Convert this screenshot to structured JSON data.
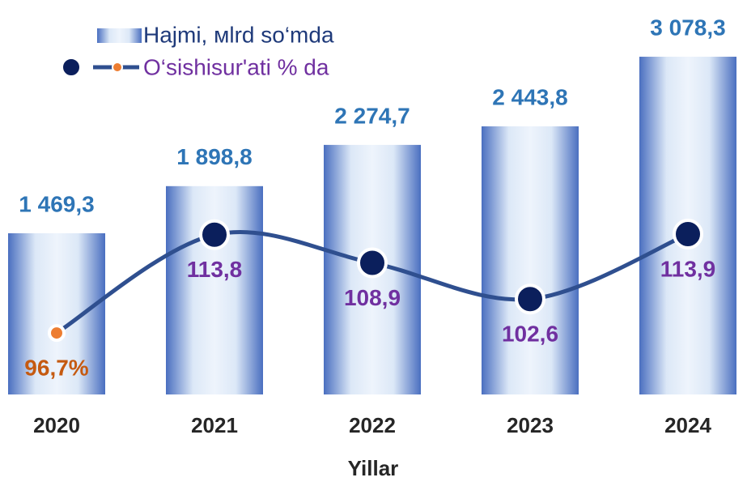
{
  "chart_data": {
    "type": "bar_line",
    "categories": [
      "2020",
      "2021",
      "2022",
      "2023",
      "2024"
    ],
    "x_label": "Yillar",
    "ylim": [
      0,
      3300
    ],
    "y2lim": [
      86,
      149
    ],
    "series": [
      {
        "name": "Hajmi, мlrd so‘mda",
        "type": "bar",
        "color": "#4472c4",
        "values": [
          1469.3,
          1898.8,
          2274.7,
          2443.8,
          3078.3
        ],
        "value_labels": [
          "1 469,3",
          "1 898,8",
          "2 274,7",
          "2 443,8",
          "3 078,3"
        ],
        "label_color": "#2e75b6"
      },
      {
        "name": "O‘sishisur'ati % da",
        "type": "line",
        "axis": "y2",
        "color": "#2f4f8f",
        "values": [
          96.7,
          113.8,
          108.9,
          102.6,
          113.9
        ],
        "value_labels": [
          "96,7%",
          "113,8",
          "108,9",
          "102,6",
          "113,9"
        ],
        "marker_colors": [
          "#ed7d31",
          "#0b1f5c",
          "#0b1f5c",
          "#0b1f5c",
          "#0b1f5c"
        ],
        "label_colors": [
          "#c55a11",
          "#7030a0",
          "#7030a0",
          "#7030a0",
          "#7030a0"
        ]
      }
    ]
  }
}
